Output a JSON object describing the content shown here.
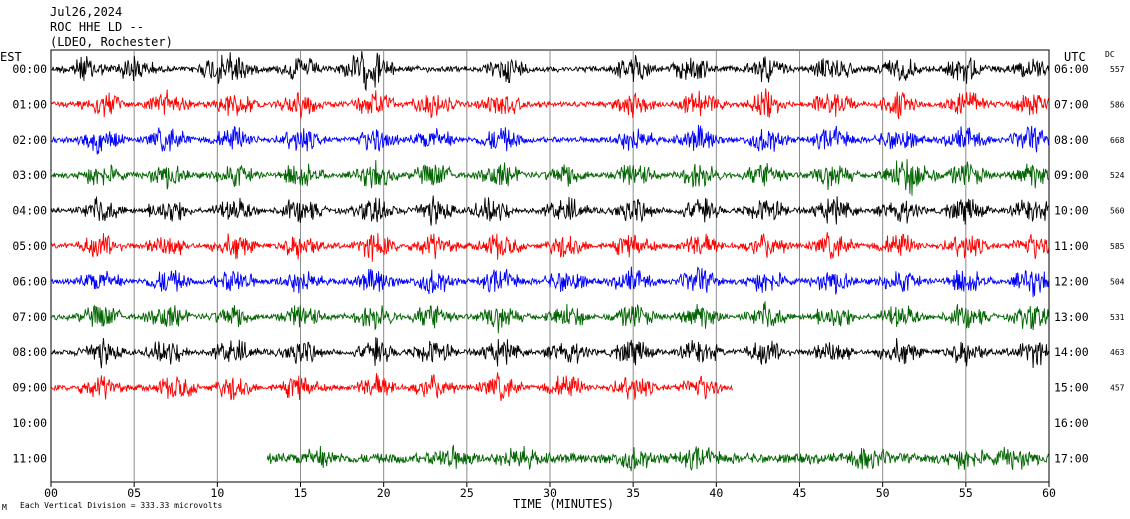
{
  "header": {
    "date": "Jul26,2024",
    "station": "ROC HHE LD --",
    "network": "(LDEO, Rochester)"
  },
  "chart_data": {
    "type": "line",
    "title": "",
    "xlabel": "TIME (MINUTES)",
    "left_timezone": "EST",
    "right_timezone": "UTC",
    "dc_header": "DC",
    "xlim": [
      0,
      60
    ],
    "x_ticks": [
      "00",
      "05",
      "10",
      "15",
      "20",
      "25",
      "30",
      "35",
      "40",
      "45",
      "50",
      "55",
      "60"
    ],
    "scale_note": "Each Vertical Division =  333.33 microvolts",
    "corner_mark": "M",
    "colors": {
      "black": "#000000",
      "red": "#ff0000",
      "blue": "#0000ff",
      "green": "#006400"
    },
    "rows": [
      {
        "est": "00:00",
        "utc": "06:00",
        "dc": "557",
        "color": "#000000",
        "start_min": 0,
        "end_min": 60,
        "event_minutes": [
          2,
          5,
          10,
          11,
          15,
          18.5,
          19.5,
          27.5,
          35,
          38.5,
          43,
          47,
          51,
          55,
          59
        ]
      },
      {
        "est": "01:00",
        "utc": "07:00",
        "dc": "586",
        "color": "#ff0000",
        "start_min": 0,
        "end_min": 60,
        "event_minutes": [
          3,
          7,
          11,
          15,
          19.5,
          23,
          27,
          35,
          39,
          43,
          47,
          51,
          55,
          59
        ]
      },
      {
        "est": "02:00",
        "utc": "08:00",
        "dc": "668",
        "color": "#0000ff",
        "start_min": 0,
        "end_min": 60,
        "event_minutes": [
          3,
          7,
          11,
          15,
          19.5,
          23,
          27,
          35,
          39,
          43,
          47,
          51,
          55,
          59
        ]
      },
      {
        "est": "03:00",
        "utc": "09:00",
        "dc": "524",
        "color": "#006400",
        "start_min": 0,
        "end_min": 60,
        "event_minutes": [
          3,
          7,
          11,
          15,
          19.5,
          23,
          27,
          31,
          35,
          39,
          43,
          47,
          51,
          52,
          55,
          59
        ]
      },
      {
        "est": "04:00",
        "utc": "10:00",
        "dc": "560",
        "color": "#000000",
        "start_min": 0,
        "end_min": 60,
        "event_minutes": [
          3,
          7,
          11,
          15,
          19.5,
          23,
          26.5,
          31,
          35,
          39,
          43,
          47,
          51,
          55,
          59
        ]
      },
      {
        "est": "05:00",
        "utc": "11:00",
        "dc": "585",
        "color": "#ff0000",
        "start_min": 0,
        "end_min": 60,
        "event_minutes": [
          3,
          7,
          11,
          15,
          19.5,
          23,
          27,
          31,
          35,
          39,
          43,
          47,
          51,
          55,
          59
        ]
      },
      {
        "est": "06:00",
        "utc": "12:00",
        "dc": "504",
        "color": "#0000ff",
        "start_min": 0,
        "end_min": 60,
        "event_minutes": [
          3,
          7,
          11,
          15,
          19.5,
          23,
          27,
          31,
          35,
          39,
          43,
          47,
          51,
          55,
          59
        ]
      },
      {
        "est": "07:00",
        "utc": "13:00",
        "dc": "531",
        "color": "#006400",
        "start_min": 0,
        "end_min": 60,
        "event_minutes": [
          3,
          7,
          11,
          15,
          19.5,
          23,
          27,
          31,
          35,
          39,
          43,
          47,
          51,
          55,
          59
        ]
      },
      {
        "est": "08:00",
        "utc": "14:00",
        "dc": "463",
        "color": "#000000",
        "start_min": 0,
        "end_min": 60,
        "event_minutes": [
          3,
          7,
          11,
          15,
          19.5,
          23,
          27,
          31,
          35,
          39,
          43,
          47,
          51,
          55,
          59
        ]
      },
      {
        "est": "09:00",
        "utc": "15:00",
        "dc": "457",
        "color": "#ff0000",
        "start_min": 0,
        "end_min": 41,
        "event_minutes": [
          3,
          7.5,
          11,
          15,
          19.5,
          23,
          27,
          31,
          35,
          39
        ]
      },
      {
        "est": "10:00",
        "utc": "16:00",
        "dc": "",
        "color": "#006400",
        "start_min": 0,
        "end_min": 0,
        "event_minutes": []
      },
      {
        "est": "11:00",
        "utc": "17:00",
        "dc": "",
        "color": "#006400",
        "start_min": 13,
        "end_min": 60,
        "event_minutes": [
          16,
          24,
          28,
          35,
          39,
          49,
          55,
          58
        ]
      }
    ]
  }
}
